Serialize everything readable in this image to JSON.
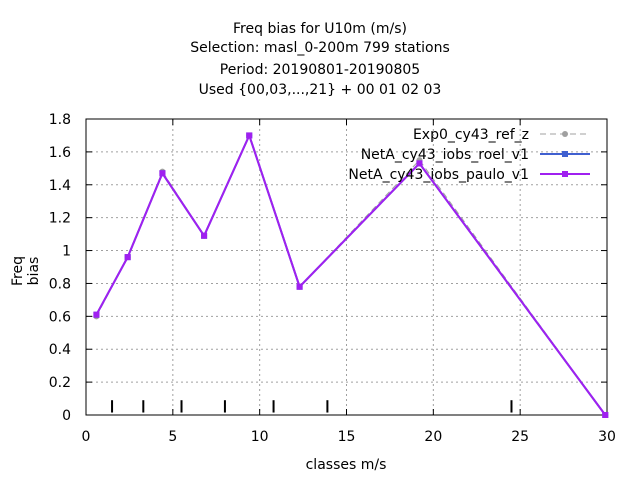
{
  "chart_data": {
    "type": "line",
    "title_lines": [
      "Freq bias  for U10m (m/s)",
      "Selection: masl_0-200m    799 stations",
      "Period: 20190801-20190805",
      "Used {00,03,...,21} + 00 01 02 03"
    ],
    "xlabel": "classes m/s",
    "ylabel": "Freq bias",
    "xlim": [
      0,
      30
    ],
    "ylim": [
      0,
      1.8
    ],
    "xticks": [
      "0",
      "5",
      "10",
      "15",
      "20",
      "25",
      "30"
    ],
    "yticks": [
      "0",
      "0.2",
      "0.4",
      "0.6",
      "0.8",
      "1",
      "1.2",
      "1.4",
      "1.6",
      "1.8"
    ],
    "grid": true,
    "legend_position": "top-right",
    "series": [
      {
        "name": "Exp0_cy43_ref_z",
        "color": "#a0a0a0",
        "dash": true,
        "marker": "circle",
        "x": [
          0.6,
          2.4,
          4.4,
          6.8,
          9.4,
          12.3,
          19.2,
          29.9
        ],
        "y": [
          0.6,
          0.96,
          1.48,
          1.09,
          1.7,
          0.78,
          1.55,
          0.0
        ]
      },
      {
        "name": "NetA_cy43_iobs_roel_v1",
        "color": "#4060d0",
        "dash": false,
        "marker": "square",
        "x": [
          0.6,
          2.4,
          4.4,
          6.8,
          9.4,
          12.3,
          19.2,
          29.9
        ],
        "y": [
          0.61,
          0.96,
          1.47,
          1.09,
          1.7,
          0.78,
          1.53,
          0.0
        ]
      },
      {
        "name": "NetA_cy43_iobs_paulo_v1",
        "color": "#a020f0",
        "dash": false,
        "marker": "square",
        "x": [
          0.6,
          2.4,
          4.4,
          6.8,
          9.4,
          12.3,
          19.2,
          29.9
        ],
        "y": [
          0.61,
          0.96,
          1.47,
          1.09,
          1.7,
          0.78,
          1.53,
          0.0
        ]
      }
    ],
    "class_limit_marks": [
      1.5,
      3.3,
      5.5,
      8.0,
      10.8,
      13.9,
      24.5
    ]
  }
}
